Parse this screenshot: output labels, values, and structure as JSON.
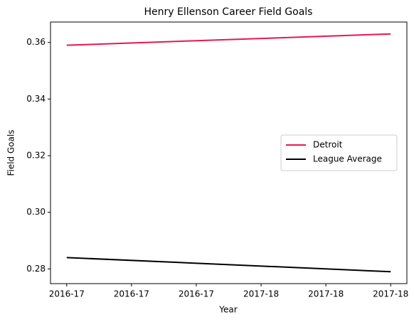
{
  "chart_data": {
    "type": "line",
    "title": "Henry Ellenson Career Field Goals",
    "xlabel": "Year",
    "ylabel": "Field Goals",
    "x": [
      0,
      1
    ],
    "series": [
      {
        "name": "Detroit",
        "color": "#e8174f",
        "values": [
          0.359,
          0.363
        ]
      },
      {
        "name": "League Average",
        "color": "#000000",
        "values": [
          0.284,
          0.279
        ]
      }
    ],
    "xlim": [
      -0.05,
      1.05
    ],
    "xticks": [
      {
        "value": 0,
        "label": "2016-17"
      },
      {
        "value": 0.2,
        "label": "2016-17"
      },
      {
        "value": 0.4,
        "label": "2016-17"
      },
      {
        "value": 0.6,
        "label": "2017-18"
      },
      {
        "value": 0.8,
        "label": "2017-18"
      },
      {
        "value": 1,
        "label": "2017-18"
      }
    ],
    "ylim": [
      0.2748,
      0.3672
    ],
    "yticks": [
      {
        "value": 0.28,
        "label": "0.28"
      },
      {
        "value": 0.3,
        "label": "0.30"
      },
      {
        "value": 0.32,
        "label": "0.32"
      },
      {
        "value": 0.34,
        "label": "0.34"
      },
      {
        "value": 0.36,
        "label": "0.36"
      }
    ],
    "legend": "center right",
    "grid": false
  }
}
